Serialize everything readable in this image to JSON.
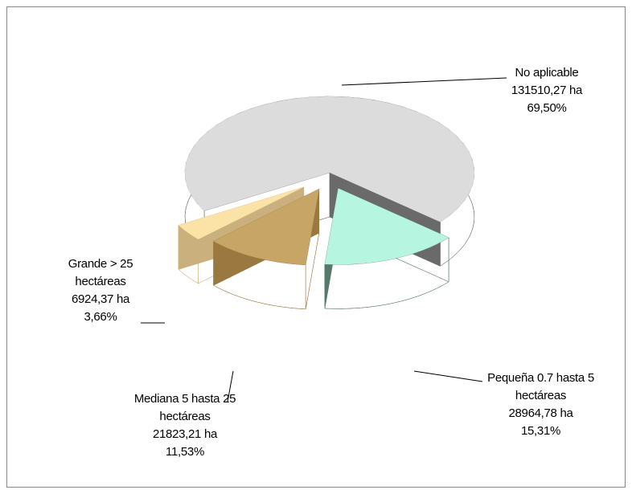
{
  "chart_data": {
    "type": "pie",
    "categories": [
      "No aplicable",
      "Pequeña  0.7 hasta 5 hectáreas",
      "Mediana  5 hasta 25 hectáreas",
      "Grande >  25 hectáreas"
    ],
    "values": [
      69.5,
      15.31,
      11.53,
      3.66
    ],
    "value_labels": [
      "69,50%",
      "15,31%",
      "11,53%",
      "3,66%"
    ],
    "areas": [
      131510.27,
      28964.78,
      21823.21,
      6924.37
    ],
    "area_labels": [
      "131510,27 ha",
      "28964,78 ha",
      "21823,21 ha",
      "6924,37 ha"
    ],
    "colors": [
      "#dcdcdc",
      "#b6f5df",
      "#c7a567",
      "#fbe3a8"
    ],
    "side_colors": [
      "#6a6a6a",
      "#557a6b",
      "#9a7840",
      "#c9b07c"
    ]
  }
}
